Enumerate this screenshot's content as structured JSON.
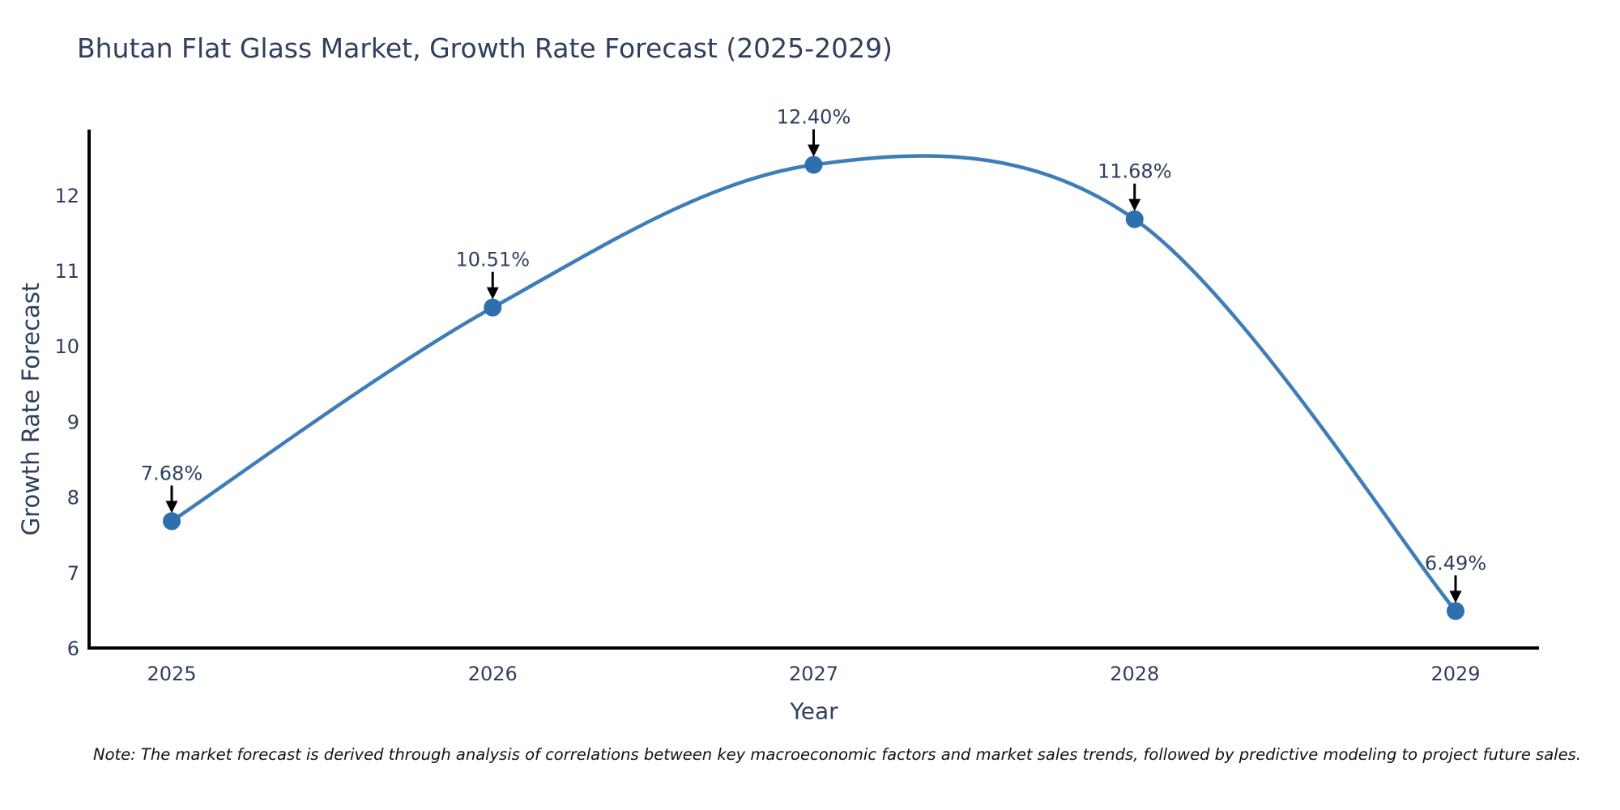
{
  "chart_data": {
    "type": "line",
    "title": "Bhutan Flat Glass Market, Growth Rate Forecast (2025-2029)",
    "xlabel": "Year",
    "ylabel": "Growth Rate Forecast",
    "x": [
      2025,
      2026,
      2027,
      2028,
      2029
    ],
    "series": [
      {
        "name": "Growth Rate Forecast",
        "values": [
          7.68,
          10.51,
          12.4,
          11.68,
          6.49
        ]
      }
    ],
    "point_labels": [
      "7.68%",
      "10.51%",
      "12.40%",
      "11.68%",
      "6.49%"
    ],
    "yticks": [
      6,
      7,
      8,
      9,
      10,
      11,
      12
    ],
    "xticks": [
      "2025",
      "2026",
      "2027",
      "2028",
      "2029"
    ],
    "ylim": [
      6,
      12.87
    ],
    "grid": false,
    "legend": "none",
    "curve": "smooth-spline",
    "colors": {
      "line": "#3d7eb8",
      "marker": "#2e6fae",
      "tick_text": "#2e3f5f",
      "annotation_text": "#2e3f5f",
      "annotation_arrow": "#000000",
      "axis": "#000000",
      "background": "#ffffff"
    }
  },
  "note": "Note: The market forecast is derived through analysis of correlations between key macroeconomic factors and market sales trends, followed by predictive modeling to project future sales."
}
